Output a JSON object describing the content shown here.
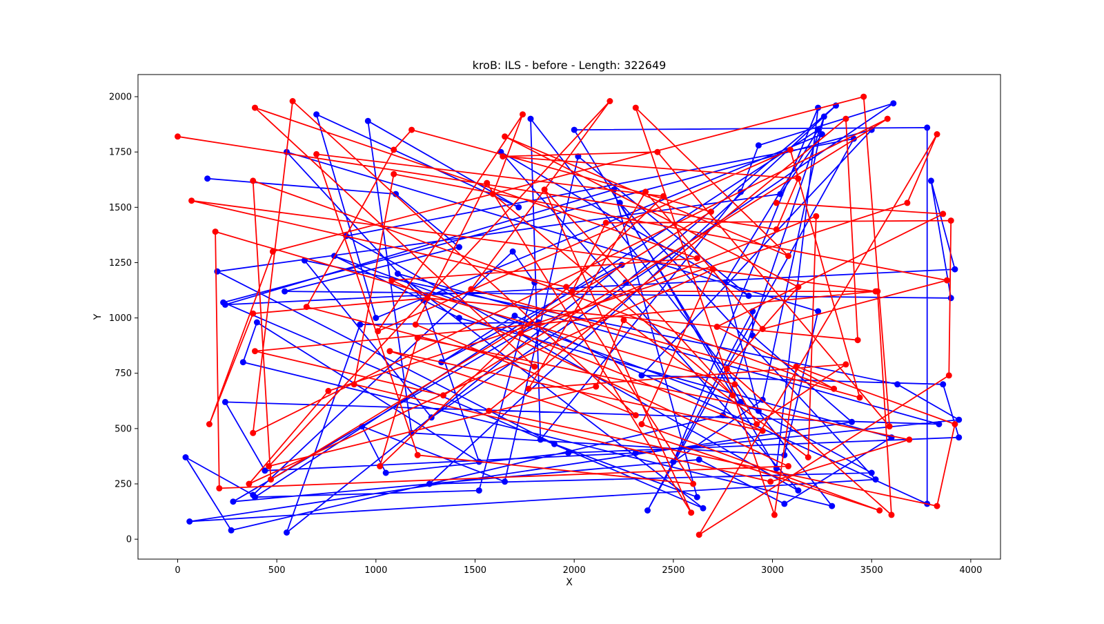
{
  "chart_data": {
    "type": "line",
    "title": "kroB: ILS - before - Length: 322649",
    "xlabel": "X",
    "ylabel": "Y",
    "xlim": [
      -200,
      4150
    ],
    "ylim": [
      -90,
      2100
    ],
    "x_ticks": [
      0,
      500,
      1000,
      1500,
      2000,
      2500,
      3000,
      3500,
      4000
    ],
    "y_ticks": [
      0,
      250,
      500,
      750,
      1000,
      1250,
      1500,
      1750,
      2000
    ],
    "x_tick_labels": [
      "0",
      "500",
      "1000",
      "1500",
      "2000",
      "2500",
      "3000",
      "3500",
      "4000"
    ],
    "y_tick_labels": [
      "0",
      "250",
      "500",
      "750",
      "1000",
      "1250",
      "1500",
      "1750",
      "2000"
    ],
    "grid": false,
    "legend": null,
    "markers": true,
    "series": [
      {
        "color": "#0000ff",
        "points": [
          [
            150,
            1630
          ],
          [
            1100,
            1560
          ],
          [
            1420,
            1320
          ],
          [
            540,
            1120
          ],
          [
            3900,
            1090
          ],
          [
            3800,
            1620
          ],
          [
            3920,
            1220
          ],
          [
            240,
            1060
          ],
          [
            2200,
            1580
          ],
          [
            2620,
            190
          ],
          [
            1900,
            430
          ],
          [
            200,
            1210
          ],
          [
            3040,
            1560
          ],
          [
            3250,
            1830
          ],
          [
            1000,
            1000
          ],
          [
            700,
            1920
          ],
          [
            1720,
            1500
          ],
          [
            960,
            1890
          ],
          [
            1180,
            480
          ],
          [
            3060,
            380
          ],
          [
            3230,
            1030
          ],
          [
            550,
            1750
          ],
          [
            1240,
            1080
          ],
          [
            1520,
            350
          ],
          [
            400,
            980
          ],
          [
            330,
            800
          ],
          [
            3300,
            150
          ],
          [
            1780,
            1900
          ],
          [
            1830,
            450
          ],
          [
            2840,
            1570
          ],
          [
            2930,
            1780
          ],
          [
            3610,
            1970
          ],
          [
            1280,
            550
          ],
          [
            640,
            1260
          ],
          [
            3630,
            700
          ],
          [
            3940,
            540
          ],
          [
            2310,
            390
          ],
          [
            440,
            310
          ],
          [
            240,
            620
          ],
          [
            3840,
            520
          ],
          [
            1110,
            1200
          ],
          [
            2650,
            140
          ],
          [
            230,
            1070
          ],
          [
            3500,
            1850
          ],
          [
            2340,
            740
          ],
          [
            3860,
            700
          ],
          [
            3940,
            460
          ],
          [
            1970,
            390
          ],
          [
            1050,
            300
          ],
          [
            930,
            510
          ],
          [
            1650,
            260
          ],
          [
            2020,
            1730
          ],
          [
            2880,
            1100
          ],
          [
            1630,
            1750
          ],
          [
            3130,
            220
          ],
          [
            850,
            1370
          ],
          [
            3410,
            1810
          ],
          [
            2370,
            130
          ],
          [
            2900,
            1030
          ],
          [
            2900,
            920
          ],
          [
            3400,
            530
          ],
          [
            60,
            80
          ],
          [
            3520,
            270
          ],
          [
            2230,
            1520
          ],
          [
            3020,
            320
          ],
          [
            3230,
            1950
          ],
          [
            2500,
            350
          ],
          [
            2950,
            630
          ],
          [
            3260,
            1910
          ],
          [
            2750,
            560
          ],
          [
            270,
            40
          ],
          [
            40,
            370
          ],
          [
            380,
            200
          ],
          [
            1690,
            1300
          ],
          [
            1800,
            1160
          ],
          [
            1520,
            220
          ],
          [
            390,
            190
          ],
          [
            3230,
            1850
          ],
          [
            2760,
            1160
          ],
          [
            2930,
            580
          ],
          [
            790,
            1280
          ],
          [
            1420,
            1000
          ],
          [
            3600,
            460
          ],
          [
            3060,
            160
          ],
          [
            2630,
            360
          ],
          [
            280,
            170
          ],
          [
            1820,
            980
          ],
          [
            920,
            970
          ],
          [
            550,
            30
          ],
          [
            2240,
            1240
          ],
          [
            1330,
            800
          ],
          [
            1700,
            1010
          ],
          [
            3780,
            160
          ],
          [
            3780,
            1860
          ],
          [
            2000,
            1850
          ],
          [
            2840,
            620
          ],
          [
            3500,
            300
          ],
          [
            1270,
            250
          ],
          [
            3320,
            1960
          ],
          [
            2260,
            1160
          ]
        ]
      },
      {
        "color": "#ff0000",
        "points": [
          [
            0,
            1820
          ],
          [
            3020,
            1400
          ],
          [
            3130,
            1630
          ],
          [
            1640,
            1730
          ],
          [
            2420,
            1750
          ],
          [
            3590,
            510
          ],
          [
            3460,
            2000
          ],
          [
            480,
            1300
          ],
          [
            160,
            520
          ],
          [
            380,
            1020
          ],
          [
            1260,
            1090
          ],
          [
            3430,
            900
          ],
          [
            3370,
            1900
          ],
          [
            1570,
            580
          ],
          [
            3830,
            150
          ],
          [
            3920,
            520
          ],
          [
            3120,
            780
          ],
          [
            3010,
            110
          ],
          [
            2310,
            1950
          ],
          [
            3080,
            1280
          ],
          [
            1650,
            1820
          ],
          [
            3130,
            1140
          ],
          [
            2770,
            770
          ],
          [
            3600,
            110
          ],
          [
            3530,
            1120
          ],
          [
            1990,
            1120
          ],
          [
            2160,
            1430
          ],
          [
            3900,
            1440
          ],
          [
            3890,
            740
          ],
          [
            2630,
            20
          ],
          [
            3830,
            1830
          ],
          [
            3680,
            1520
          ],
          [
            760,
            670
          ],
          [
            360,
            250
          ],
          [
            2700,
            1220
          ],
          [
            2340,
            520
          ],
          [
            3540,
            130
          ],
          [
            1070,
            850
          ],
          [
            2950,
            490
          ],
          [
            1730,
            930
          ],
          [
            3220,
            1460
          ],
          [
            3180,
            370
          ],
          [
            2250,
            990
          ],
          [
            2110,
            690
          ],
          [
            460,
            330
          ],
          [
            2180,
            1980
          ],
          [
            1480,
            1130
          ],
          [
            3440,
            640
          ],
          [
            3090,
            1760
          ],
          [
            1010,
            940
          ],
          [
            1740,
            1920
          ],
          [
            1590,
            1560
          ],
          [
            2800,
            650
          ],
          [
            1850,
            1580
          ],
          [
            2590,
            120
          ],
          [
            1560,
            1610
          ],
          [
            1200,
            970
          ],
          [
            2310,
            560
          ],
          [
            580,
            1980
          ],
          [
            380,
            480
          ],
          [
            3580,
            1900
          ],
          [
            1340,
            650
          ],
          [
            390,
            850
          ],
          [
            3520,
            1120
          ],
          [
            70,
            1530
          ],
          [
            1960,
            1140
          ],
          [
            2600,
            250
          ],
          [
            1210,
            380
          ],
          [
            700,
            1740
          ],
          [
            2450,
            1550
          ],
          [
            1020,
            330
          ],
          [
            1210,
            910
          ],
          [
            3690,
            450
          ],
          [
            2990,
            260
          ],
          [
            890,
            700
          ],
          [
            1090,
            1650
          ],
          [
            3880,
            1170
          ],
          [
            2950,
            950
          ],
          [
            2360,
            1570
          ],
          [
            1770,
            680
          ],
          [
            3370,
            790
          ],
          [
            2920,
            520
          ],
          [
            2810,
            700
          ],
          [
            190,
            1390
          ],
          [
            210,
            230
          ],
          [
            3080,
            330
          ],
          [
            1080,
            1170
          ],
          [
            2620,
            1270
          ],
          [
            390,
            1950
          ],
          [
            1800,
            780
          ],
          [
            650,
            1050
          ],
          [
            1090,
            1760
          ],
          [
            1180,
            1850
          ],
          [
            2690,
            1480
          ],
          [
            470,
            270
          ],
          [
            380,
            1620
          ],
          [
            3310,
            680
          ],
          [
            2720,
            960
          ],
          [
            3860,
            1470
          ],
          [
            3020,
            1520
          ]
        ]
      }
    ]
  }
}
